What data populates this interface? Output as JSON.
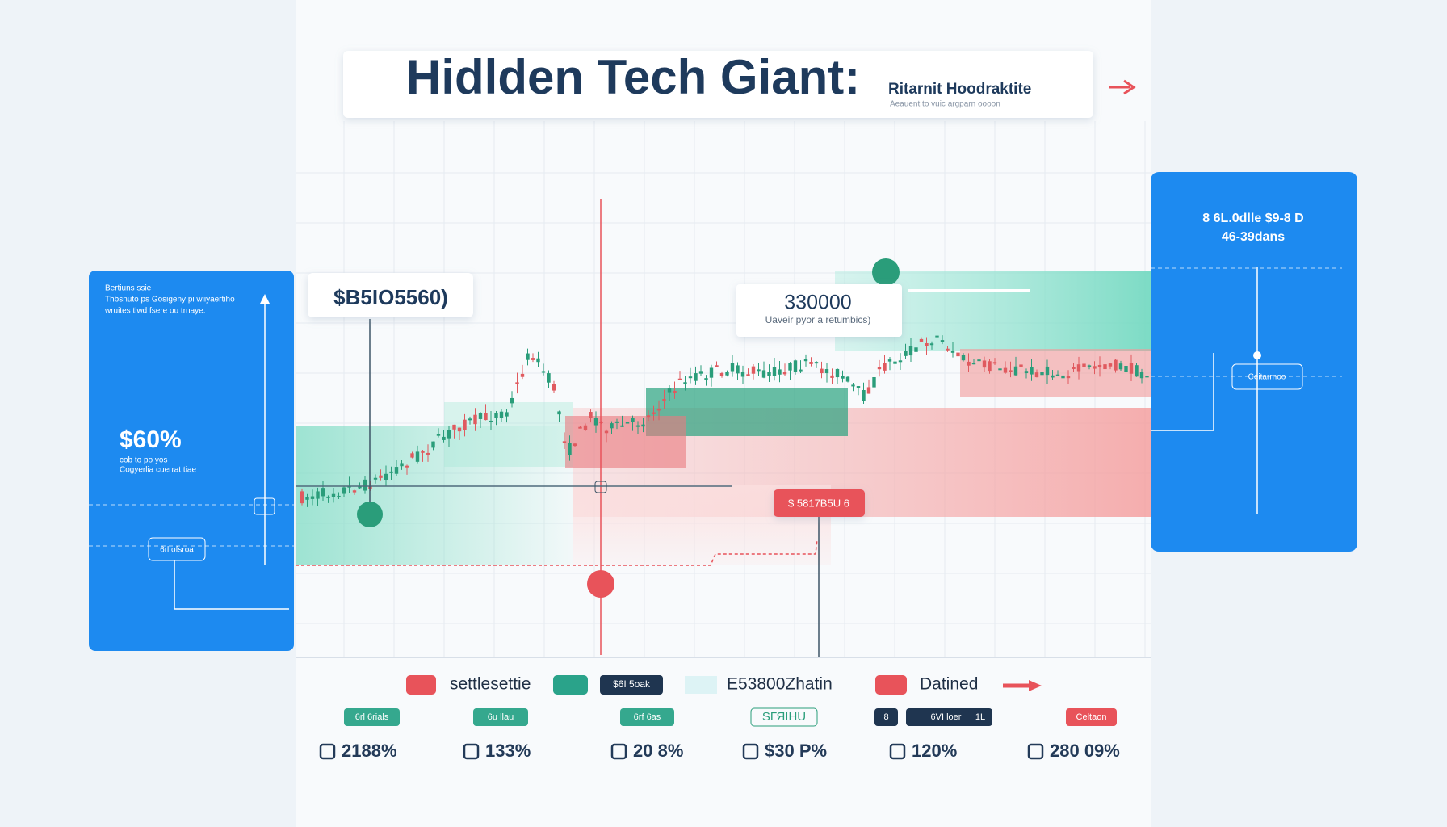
{
  "header": {
    "title": "Hidlden Tech Giant:",
    "subtitle": "Ritarnit Hoodraktite",
    "caption": "Aeauent to vuic argparn oooon"
  },
  "left_panel": {
    "note": [
      "Bertiuns ssie",
      "Thbsnuto ps Gosigeny pi wiiyaertiho",
      "wruites tlwd fsere ou trnaye."
    ],
    "headline": "$60%",
    "detail": [
      "cob to po yos",
      "Cogyerlia cuerrat tiae"
    ],
    "button": "6rl ofsroa"
  },
  "right_panel": {
    "title": "8 6L.0dlle $9-8 D",
    "subtitle": "46-39dans",
    "button": "Ceitarrnoo"
  },
  "chart": {
    "price_label": "$B5IO5560)",
    "callout_value": "330000",
    "callout_note": "Uaveir pyor a retumbics)",
    "alert_label": "$ 5817B5U 6"
  },
  "legend": [
    "settlesettie",
    "$6I 5oak",
    "E53800Zhatin",
    "Datined"
  ],
  "tags": [
    "6rl 6rials",
    "6u llau",
    "6rf 6as",
    "SГЯIHU",
    "8",
    "6VI loer",
    "1L",
    "Celtaon"
  ],
  "stats": [
    "2188%",
    "133%",
    "20 8%",
    "$30 P%",
    "120%",
    "280 09%"
  ]
}
